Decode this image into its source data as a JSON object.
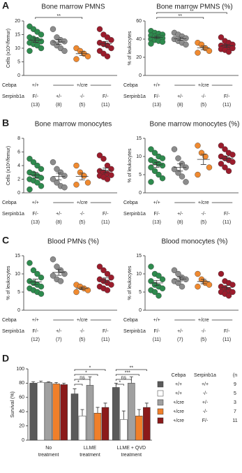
{
  "chart_data": [
    {
      "panel": "A",
      "type": "dotplot",
      "title": "Bone marrow PMNS",
      "ylabel": "Cells (x10⁶/femur)",
      "ylim": [
        0,
        20
      ],
      "yticks": [
        0,
        5,
        10,
        15,
        20
      ],
      "row_labels": [
        "Cebpa",
        "Serpinb1a"
      ],
      "cebpa": [
        "+/+",
        "+/cre"
      ],
      "groups": [
        {
          "serpinb1a": "F/-",
          "n": "(13)",
          "color": "#2e8b4e",
          "values": [
            18,
            17,
            16,
            15,
            14,
            13.5,
            13,
            12.5,
            12,
            11.5,
            11,
            10,
            9
          ],
          "mean": 13,
          "sem": 0.8
        },
        {
          "serpinb1a": "+/-",
          "n": "(8)",
          "color": "#8c8c8c",
          "values": [
            17,
            14,
            13,
            12.5,
            12,
            11,
            10,
            9
          ],
          "mean": 12.3,
          "sem": 0.9
        },
        {
          "serpinb1a": "-/-",
          "n": "(5)",
          "color": "#f08a30",
          "values": [
            10,
            9,
            8,
            7,
            6
          ],
          "mean": 8,
          "sem": 0.7
        },
        {
          "serpinb1a": "F/-",
          "n": "(11)",
          "color": "#9b1c2c",
          "values": [
            17,
            15,
            14,
            13,
            12,
            11.5,
            11,
            10,
            9,
            8,
            7
          ],
          "mean": 11.6,
          "sem": 0.9
        }
      ],
      "brackets": [
        {
          "groups": [
            0,
            2
          ],
          "label": "**"
        }
      ]
    },
    {
      "type": "dotplot",
      "title": "Bone marrow PMNS (%)",
      "ylabel": "% of leukocytes",
      "ylim": [
        0,
        60
      ],
      "yticks": [
        0,
        20,
        40,
        60
      ],
      "row_labels": [
        "Cebpa",
        "Serpinb1a"
      ],
      "cebpa": [
        "+/+",
        "+/cre"
      ],
      "groups": [
        {
          "serpinb1a": "F/-",
          "n": "(13)",
          "color": "#2e8b4e",
          "values": [
            49,
            47,
            46,
            45,
            44,
            43,
            42,
            41,
            40,
            39,
            38,
            37,
            35
          ],
          "mean": 42,
          "sem": 1.2
        },
        {
          "serpinb1a": "+/-",
          "n": "(8)",
          "color": "#8c8c8c",
          "values": [
            47,
            45,
            43,
            41,
            40,
            38,
            36,
            34
          ],
          "mean": 40.5,
          "sem": 1.6
        },
        {
          "serpinb1a": "-/-",
          "n": "(5)",
          "color": "#f08a30",
          "values": [
            36,
            34,
            30,
            27,
            25
          ],
          "mean": 30.4,
          "sem": 2
        },
        {
          "serpinb1a": "F/-",
          "n": "(11)",
          "color": "#9b1c2c",
          "values": [
            42,
            38,
            36,
            34,
            33,
            32,
            31,
            30,
            29,
            28,
            26
          ],
          "mean": 32.6,
          "sem": 1.4
        }
      ],
      "brackets": [
        {
          "groups": [
            0,
            2
          ],
          "label": "**"
        },
        {
          "groups": [
            0,
            3
          ],
          "label": "**"
        }
      ]
    },
    {
      "panel": "B",
      "type": "dotplot",
      "title": "Bone marrow monocytes",
      "ylabel": "Cells (x10⁶/femur)",
      "ylim": [
        0,
        8
      ],
      "yticks": [
        0,
        2,
        4,
        6,
        8
      ],
      "row_labels": [
        "Cebpa",
        "Serpinb1a"
      ],
      "cebpa": [
        "+/+",
        "+/cre"
      ],
      "groups": [
        {
          "serpinb1a": "F/-",
          "n": "(13)",
          "color": "#2e8b4e",
          "values": [
            5,
            4.5,
            4,
            3.5,
            3,
            2.8,
            2.5,
            2.2,
            2,
            1.8,
            1.5,
            1,
            0.5
          ],
          "mean": 2.6,
          "sem": 0.4
        },
        {
          "serpinb1a": "+/-",
          "n": "(8)",
          "color": "#8c8c8c",
          "values": [
            4.5,
            3.5,
            3,
            2.5,
            2,
            1.5,
            1,
            0.8
          ],
          "mean": 2.4,
          "sem": 0.5
        },
        {
          "serpinb1a": "-/-",
          "n": "(5)",
          "color": "#f08a30",
          "values": [
            4,
            3,
            2.5,
            1.5,
            1.2
          ],
          "mean": 2.4,
          "sem": 0.5
        },
        {
          "serpinb1a": "F/-",
          "n": "(11)",
          "color": "#9b1c2c",
          "values": [
            5.5,
            5,
            4,
            3.5,
            3.2,
            3,
            2.8,
            2.6,
            2.5,
            2.3,
            2
          ],
          "mean": 3.3,
          "sem": 0.35
        }
      ],
      "brackets": []
    },
    {
      "type": "dotplot",
      "title": "Bone marrow monocytes (%)",
      "ylabel": "% of leukocytes",
      "ylim": [
        0,
        15
      ],
      "yticks": [
        0,
        5,
        10,
        15
      ],
      "row_labels": [
        "Cebpa",
        "Serpinb1a"
      ],
      "cebpa": [
        "+/+",
        "+/cre"
      ],
      "groups": [
        {
          "serpinb1a": "F/-",
          "n": "(13)",
          "color": "#2e8b4e",
          "values": [
            12,
            11,
            10,
            9.5,
            9,
            8.5,
            8,
            7.5,
            7,
            6,
            5,
            4,
            3
          ],
          "mean": 7.7,
          "sem": 0.7
        },
        {
          "serpinb1a": "+/-",
          "n": "(8)",
          "color": "#8c8c8c",
          "values": [
            12,
            9.5,
            8,
            7,
            6.5,
            5.5,
            4.5,
            3
          ],
          "mean": 7,
          "sem": 1
        },
        {
          "serpinb1a": "-/-",
          "n": "(5)",
          "color": "#f08a30",
          "values": [
            13,
            11,
            10,
            7,
            5
          ],
          "mean": 9.2,
          "sem": 1.4
        },
        {
          "serpinb1a": "F/-",
          "n": "(11)",
          "color": "#9b1c2c",
          "values": [
            13,
            12,
            11,
            10.5,
            10,
            9.5,
            9,
            8.5,
            8,
            7,
            6
          ],
          "mean": 9.5,
          "sem": 0.6
        }
      ],
      "brackets": []
    },
    {
      "panel": "C",
      "type": "dotplot",
      "title": "Blood PMNs (%)",
      "ylabel": "% of leukocytes",
      "ylim": [
        0,
        15
      ],
      "yticks": [
        0,
        5,
        10,
        15
      ],
      "row_labels": [
        "Cebpa",
        "Serpinb1a"
      ],
      "cebpa": [
        "+/+",
        "+/cre"
      ],
      "groups": [
        {
          "serpinb1a": "F/-",
          "n": "(12)",
          "color": "#2e8b4e",
          "values": [
            13,
            11,
            10,
            9,
            8,
            7.5,
            7,
            6.5,
            6,
            5.5,
            5,
            4.5
          ],
          "mean": 7.8,
          "sem": 0.75
        },
        {
          "serpinb1a": "+/-",
          "n": "(7)",
          "color": "#8c8c8c",
          "values": [
            14,
            12,
            11,
            10,
            9.5,
            8.5,
            8
          ],
          "mean": 10.4,
          "sem": 0.8
        },
        {
          "serpinb1a": "-/-",
          "n": "(5)",
          "color": "#f08a30",
          "values": [
            7,
            6.5,
            6,
            5.5,
            5
          ],
          "mean": 6,
          "sem": 0.35
        },
        {
          "serpinb1a": "F/-",
          "n": "(11)",
          "color": "#9b1c2c",
          "values": [
            12,
            11,
            10,
            9,
            8.5,
            8,
            7.5,
            7,
            6.5,
            6,
            5.5
          ],
          "mean": 8.3,
          "sem": 0.6
        }
      ],
      "brackets": []
    },
    {
      "type": "dotplot",
      "title": "Blood monocytes (%)",
      "ylabel": "% of leukocytes",
      "ylim": [
        0,
        15
      ],
      "yticks": [
        0,
        5,
        10,
        15
      ],
      "row_labels": [
        "Cebpa",
        "Serpinb1a"
      ],
      "cebpa": [
        "+/+",
        "+/cre"
      ],
      "groups": [
        {
          "serpinb1a": "F/-",
          "n": "(11)",
          "color": "#2e8b4e",
          "values": [
            12,
            10,
            9.5,
            8.5,
            8,
            7,
            6.5,
            6,
            5.5,
            5,
            4
          ],
          "mean": 7.5,
          "sem": 0.7
        },
        {
          "serpinb1a": "+/-",
          "n": "(7)",
          "color": "#8c8c8c",
          "values": [
            11,
            10,
            9,
            8.5,
            8,
            7.5,
            6.5
          ],
          "mean": 8.6,
          "sem": 0.55
        },
        {
          "serpinb1a": "-/-",
          "n": "(5)",
          "color": "#f08a30",
          "values": [
            10,
            8.5,
            7.5,
            7,
            6.5
          ],
          "mean": 7.9,
          "sem": 0.6
        },
        {
          "serpinb1a": "F/-",
          "n": "(11)",
          "color": "#9b1c2c",
          "values": [
            10,
            8,
            7.5,
            7,
            6.5,
            6,
            5.5,
            5,
            5,
            4.5,
            4
          ],
          "mean": 6.3,
          "sem": 0.5
        }
      ],
      "brackets": []
    },
    {
      "panel": "D",
      "type": "bar",
      "ylabel": "Survival (%)",
      "ylim": [
        0,
        100
      ],
      "yticks": [
        0,
        20,
        40,
        60,
        80,
        100
      ],
      "categories": [
        [
          "No",
          "treatment"
        ],
        [
          "LLME",
          "treatment"
        ],
        [
          "LLME + QVD",
          "treatment"
        ]
      ],
      "legend_headers": [
        "Cebpa",
        "Serpinb1a",
        "(n"
      ],
      "series": [
        {
          "cebpa": "+/+",
          "serpinb1a": "+/+",
          "n": "9",
          "color": "#5a5a5a",
          "values": [
            80,
            65,
            74
          ],
          "errors": [
            2,
            7,
            6
          ]
        },
        {
          "cebpa": "+/+",
          "serpinb1a": "-/-",
          "n": "5",
          "color": "#ffffff",
          "values": [
            81,
            34,
            29
          ],
          "errors": [
            2,
            9,
            12
          ]
        },
        {
          "cebpa": "+/cre",
          "serpinb1a": "+/-",
          "n": "3",
          "color": "#a0a0a0",
          "values": [
            81,
            77,
            80
          ],
          "errors": [
            1,
            12,
            9
          ]
        },
        {
          "cebpa": "+/cre",
          "serpinb1a": "-/-",
          "n": "7",
          "color": "#f07f2a",
          "values": [
            79,
            38,
            34
          ],
          "errors": [
            2,
            8,
            9
          ]
        },
        {
          "cebpa": "+/cre",
          "serpinb1a": "F/-",
          "n": "11",
          "color": "#8b1a1a",
          "values": [
            78,
            46,
            46
          ],
          "errors": [
            2,
            6,
            6
          ]
        }
      ],
      "brackets": [
        {
          "category": 1,
          "bars": [
            0,
            1
          ],
          "label": "*"
        },
        {
          "category": 1,
          "bars": [
            0,
            2
          ],
          "label": "ns"
        },
        {
          "category": 1,
          "bars": [
            0,
            3
          ],
          "label": "*"
        },
        {
          "category": 1,
          "bars": [
            0,
            4
          ],
          "label": "*"
        },
        {
          "category": 2,
          "bars": [
            0,
            1
          ],
          "label": "*"
        },
        {
          "category": 2,
          "bars": [
            0,
            2
          ],
          "label": "ns"
        },
        {
          "category": 2,
          "bars": [
            0,
            3
          ],
          "label": "***"
        },
        {
          "category": 2,
          "bars": [
            0,
            4
          ],
          "label": "**"
        }
      ]
    }
  ]
}
